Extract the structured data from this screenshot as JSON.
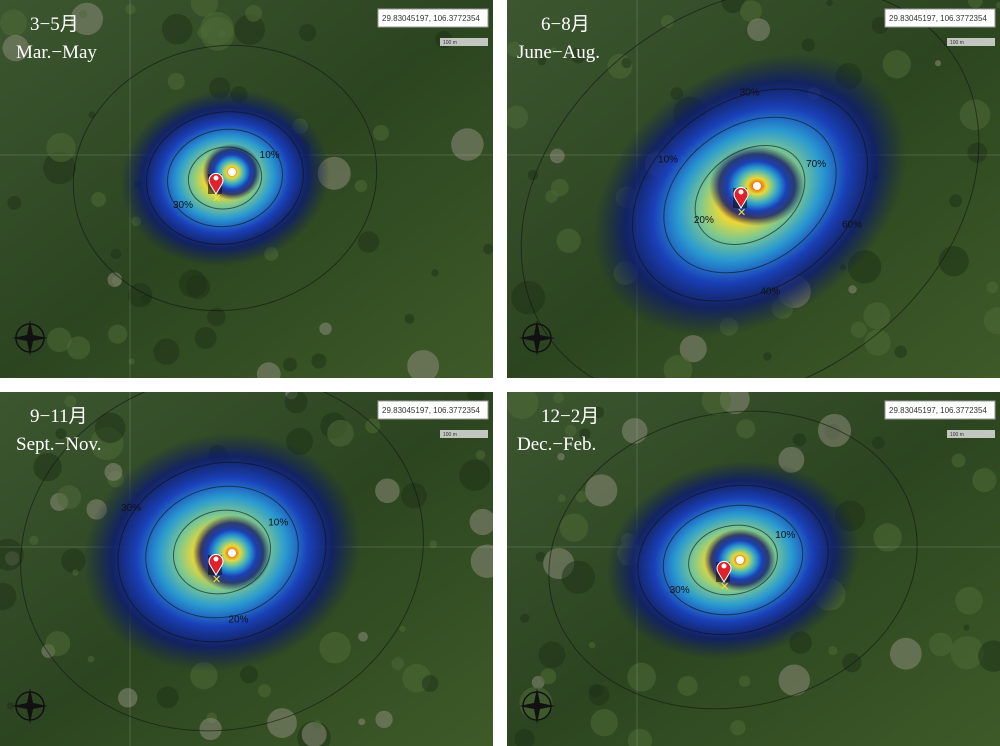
{
  "panels": [
    {
      "period": "3−5月",
      "season": "Mar.−May",
      "coordinates": "29.83045197, 106.3772354",
      "scale": "100 m",
      "contour_labels": [
        "10%",
        "30%"
      ]
    },
    {
      "period": "6−8月",
      "season": "June−Aug.",
      "coordinates": "29.83045197, 106.3772354",
      "scale": "100 m",
      "contour_labels": [
        "70%",
        "60%",
        "40%",
        "20%",
        "10%",
        "30%"
      ]
    },
    {
      "period": "9−11月",
      "season": "Sept.−Nov.",
      "coordinates": "29.83045197, 106.3772354",
      "scale": "100 m",
      "contour_labels": [
        "10%",
        "20%",
        "30%"
      ]
    },
    {
      "period": "12−2月",
      "season": "Dec.−Feb.",
      "coordinates": "29.83045197, 106.3772354",
      "scale": "100 m",
      "contour_labels": [
        "10%",
        "30%"
      ]
    }
  ]
}
